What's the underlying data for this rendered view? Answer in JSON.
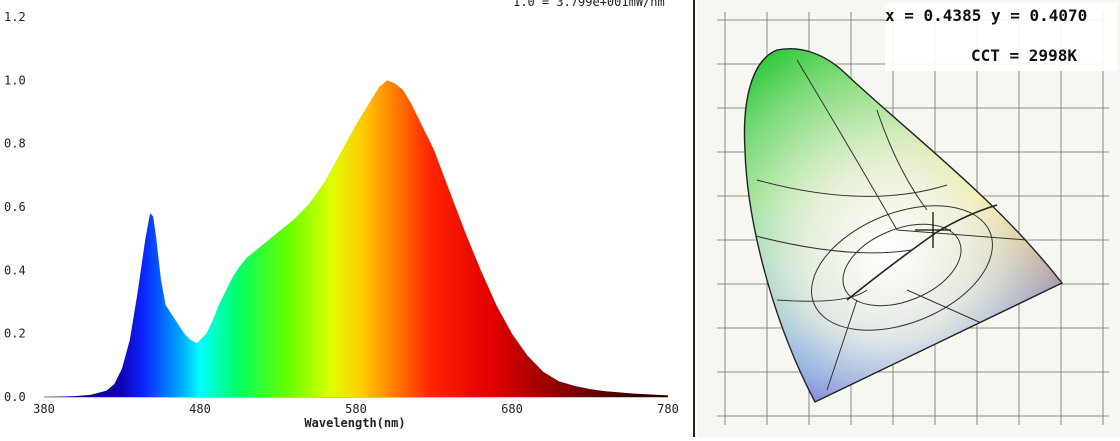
{
  "chart_data": [
    {
      "type": "area",
      "title": "",
      "xlabel": "Wavelength(nm)",
      "ylabel": "",
      "xlim": [
        380,
        780
      ],
      "ylim": [
        0,
        1.2
      ],
      "x_ticks": [
        "380",
        "480",
        "580",
        "680",
        "780"
      ],
      "y_ticks": [
        "0.0",
        "0.2",
        "0.4",
        "0.6",
        "0.8",
        "1.0",
        "1.2"
      ],
      "header_text": "1.0 = 3.799e+001mW/nm",
      "fill": "visible-spectrum gradient",
      "series": [
        {
          "x": [
            380,
            400,
            410,
            420,
            425,
            430,
            435,
            440,
            445,
            448,
            450,
            452,
            455,
            458,
            462,
            466,
            470,
            474,
            478,
            480,
            484,
            488,
            492,
            496,
            500,
            505,
            510,
            515,
            520,
            525,
            530,
            540,
            550,
            560,
            570,
            580,
            590,
            595,
            600,
            605,
            610,
            615,
            620,
            630,
            640,
            650,
            660,
            670,
            680,
            690,
            700,
            710,
            720,
            730,
            740,
            760,
            780
          ],
          "y": [
            0.0,
            0.003,
            0.007,
            0.02,
            0.04,
            0.09,
            0.18,
            0.33,
            0.5,
            0.58,
            0.57,
            0.5,
            0.37,
            0.29,
            0.26,
            0.23,
            0.2,
            0.18,
            0.17,
            0.18,
            0.2,
            0.24,
            0.29,
            0.33,
            0.37,
            0.41,
            0.44,
            0.46,
            0.48,
            0.5,
            0.52,
            0.56,
            0.61,
            0.68,
            0.77,
            0.86,
            0.94,
            0.98,
            1.0,
            0.99,
            0.97,
            0.93,
            0.88,
            0.78,
            0.65,
            0.52,
            0.4,
            0.29,
            0.2,
            0.13,
            0.08,
            0.05,
            0.035,
            0.025,
            0.018,
            0.01,
            0.005
          ]
        }
      ]
    },
    {
      "type": "scatter",
      "title": "",
      "subtype": "CIE 1931 chromaticity diagram",
      "readout": {
        "xy": "x = 0.4385 y = 0.4070",
        "cct": "CCT = 2998K"
      },
      "marker": {
        "x": 0.4385,
        "y": 0.407
      }
    }
  ]
}
